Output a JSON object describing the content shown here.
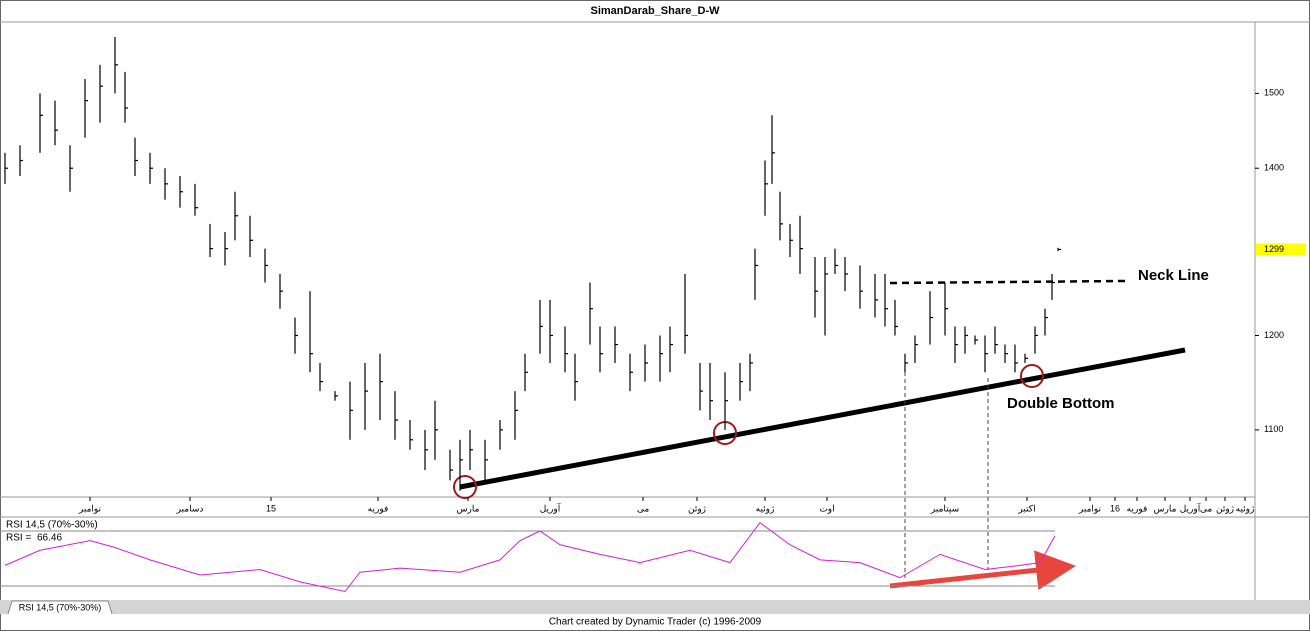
{
  "chart_data": {
    "type": "ohlc",
    "title": "SimanDarab_Share_D-W",
    "log_scale": true,
    "color": "#000000",
    "x": [
      5,
      20,
      40,
      55,
      70,
      85,
      100,
      115,
      125,
      135,
      150,
      165,
      180,
      195,
      210,
      225,
      235,
      250,
      265,
      280,
      295,
      310,
      320,
      335,
      350,
      365,
      380,
      395,
      410,
      425,
      435,
      450,
      460,
      470,
      485,
      500,
      515,
      525,
      540,
      550,
      565,
      575,
      590,
      600,
      615,
      630,
      645,
      660,
      670,
      685,
      700,
      710,
      725,
      740,
      750,
      755,
      765,
      772,
      780,
      790,
      800,
      815,
      825,
      835,
      845,
      860,
      875,
      885,
      895,
      905,
      915,
      930,
      945,
      955,
      965,
      975,
      985,
      995,
      1005,
      1015,
      1025,
      1035,
      1045,
      1052,
      1058
    ],
    "low": [
      1380,
      1390,
      1420,
      1430,
      1370,
      1440,
      1460,
      1500,
      1460,
      1390,
      1380,
      1360,
      1350,
      1340,
      1290,
      1280,
      1310,
      1290,
      1260,
      1230,
      1180,
      1160,
      1140,
      1130,
      1090,
      1100,
      1110,
      1090,
      1080,
      1060,
      1070,
      1050,
      1040,
      1060,
      1050,
      1080,
      1090,
      1140,
      1180,
      1170,
      1160,
      1130,
      1190,
      1160,
      1170,
      1140,
      1150,
      1150,
      1160,
      1180,
      1120,
      1110,
      1100,
      1130,
      1140,
      1240,
      1340,
      1380,
      1310,
      1290,
      1270,
      1220,
      1200,
      1270,
      1250,
      1230,
      1220,
      1210,
      1200,
      1160,
      1170,
      1190,
      1200,
      1170,
      1180,
      1190,
      1160,
      1180,
      1170,
      1160,
      1170,
      1180,
      1200,
      1240,
      1297
    ],
    "high": [
      1420,
      1430,
      1500,
      1490,
      1430,
      1520,
      1540,
      1580,
      1530,
      1440,
      1420,
      1400,
      1390,
      1380,
      1330,
      1320,
      1370,
      1340,
      1300,
      1270,
      1220,
      1250,
      1170,
      1140,
      1150,
      1170,
      1180,
      1140,
      1110,
      1100,
      1130,
      1080,
      1090,
      1100,
      1090,
      1110,
      1140,
      1180,
      1240,
      1240,
      1210,
      1180,
      1260,
      1210,
      1210,
      1180,
      1190,
      1200,
      1210,
      1270,
      1170,
      1170,
      1160,
      1170,
      1180,
      1300,
      1410,
      1470,
      1370,
      1330,
      1340,
      1290,
      1290,
      1300,
      1290,
      1280,
      1270,
      1270,
      1240,
      1180,
      1200,
      1250,
      1260,
      1210,
      1210,
      1200,
      1200,
      1210,
      1190,
      1190,
      1180,
      1210,
      1230,
      1270,
      1301
    ],
    "close": [
      1400,
      1410,
      1470,
      1450,
      1400,
      1490,
      1510,
      1540,
      1480,
      1410,
      1400,
      1380,
      1370,
      1350,
      1300,
      1300,
      1340,
      1310,
      1280,
      1250,
      1200,
      1180,
      1150,
      1135,
      1120,
      1140,
      1150,
      1110,
      1090,
      1080,
      1100,
      1060,
      1070,
      1080,
      1070,
      1100,
      1120,
      1160,
      1210,
      1200,
      1180,
      1150,
      1230,
      1180,
      1190,
      1160,
      1170,
      1180,
      1190,
      1200,
      1140,
      1130,
      1130,
      1150,
      1170,
      1280,
      1380,
      1420,
      1330,
      1310,
      1300,
      1250,
      1270,
      1280,
      1270,
      1250,
      1240,
      1230,
      1210,
      1170,
      1190,
      1220,
      1230,
      1190,
      1200,
      1195,
      1180,
      1190,
      1180,
      1170,
      1175,
      1200,
      1220,
      1260,
      1299
    ],
    "xlim": [
      0,
      1255
    ],
    "ylim": [
      1034,
      1602
    ],
    "yticks": [
      1100,
      1200,
      1400,
      1500
    ],
    "xticks": [
      {
        "value": 90,
        "label": "نوامبر"
      },
      {
        "value": 190,
        "label": "دسامبر"
      },
      {
        "value": 271,
        "label": "15"
      },
      {
        "value": 378,
        "label": "فوریه"
      },
      {
        "value": 468,
        "label": "مارس"
      },
      {
        "value": 550,
        "label": "آوریل"
      },
      {
        "value": 643,
        "label": "می"
      },
      {
        "value": 697,
        "label": "ژوئن"
      },
      {
        "value": 765,
        "label": "ژوئیه"
      },
      {
        "value": 827,
        "label": "اوت"
      },
      {
        "value": 945,
        "label": "سپتامبر"
      },
      {
        "value": 1027,
        "label": "اکتبر"
      },
      {
        "value": 1090,
        "label": "نوامبر"
      },
      {
        "value": 1115,
        "label": "16"
      },
      {
        "value": 1137,
        "label": "فوریه"
      },
      {
        "value": 1165,
        "label": "مارس"
      },
      {
        "value": 1190,
        "label": "آوریل"
      },
      {
        "value": 1206,
        "label": "می"
      },
      {
        "value": 1225,
        "label": "ژوئن"
      },
      {
        "value": 1245,
        "label": "ژوئیه"
      }
    ],
    "annotations": [
      "Neck Line",
      "Double Bottom"
    ],
    "rsi": {
      "name": "RSI 14,5 (70%-30%)",
      "value_caption": "RSI =",
      "color": "#d21fd2",
      "x": [
        5,
        40,
        90,
        115,
        150,
        200,
        260,
        300,
        345,
        360,
        400,
        460,
        500,
        520,
        540,
        560,
        600,
        640,
        690,
        730,
        760,
        790,
        820,
        860,
        900,
        940,
        985,
        1020,
        1040,
        1055
      ],
      "values": [
        45,
        56,
        63,
        58,
        49,
        38,
        42,
        33,
        26,
        40,
        43,
        40,
        49,
        63,
        70,
        60,
        53,
        47,
        56,
        47,
        76,
        60,
        49,
        47,
        36,
        53,
        42,
        45,
        47,
        66.46
      ],
      "ylim": [
        22,
        78
      ],
      "levels": [
        70,
        30
      ]
    },
    "footer": "Chart created by Dynamic Trader  (c) 1996-2009"
  }
}
